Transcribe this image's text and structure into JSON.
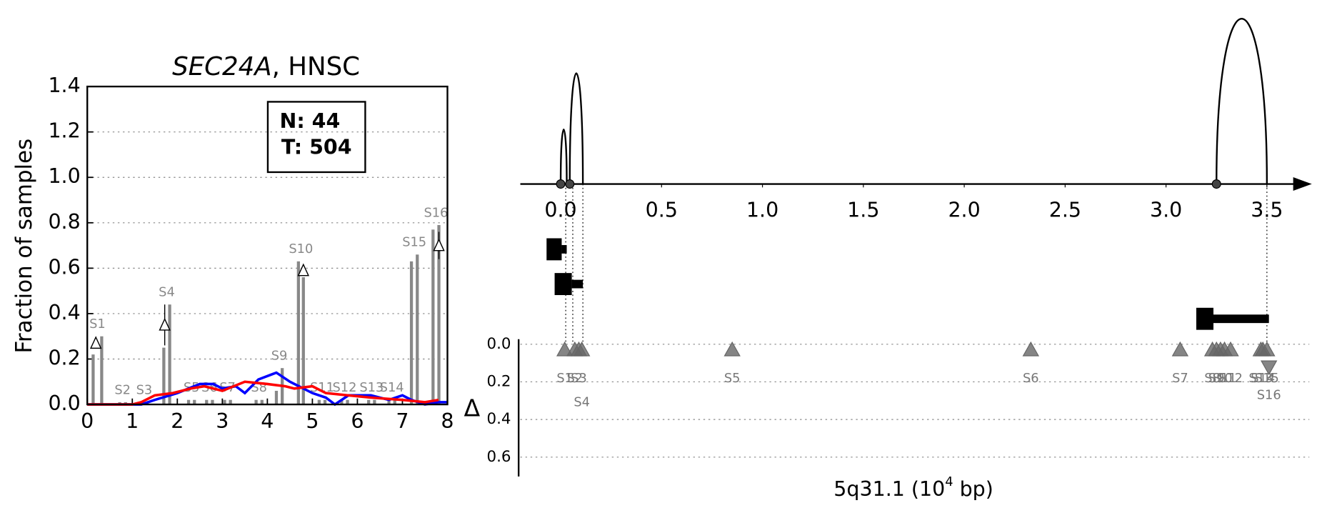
{
  "chart_data": [
    {
      "type": "segment-bar",
      "title": [
        "SEC24A",
        ", HNSC"
      ],
      "ylabel": "Fraction of samples",
      "xlim": [
        0,
        8
      ],
      "xticks": [
        0,
        1,
        2,
        3,
        4,
        5,
        6,
        7,
        8
      ],
      "ylim": [
        0,
        1.4
      ],
      "yticks": [
        {
          "value": 0,
          "label": "0.0"
        },
        {
          "value": 0.2,
          "label": "0.2"
        },
        {
          "value": 0.4,
          "label": "0.4"
        },
        {
          "value": 0.6,
          "label": "0.6"
        },
        {
          "value": 0.8,
          "label": "0.8"
        },
        {
          "value": 1.0,
          "label": "1.0"
        },
        {
          "value": 1.2,
          "label": "1.2"
        },
        {
          "value": 1.4,
          "label": "1.4"
        }
      ],
      "grid": true,
      "legend": [
        "N: 44",
        "T: 504"
      ],
      "bar_color": "#888888",
      "segments": [
        {
          "label": "S1",
          "x": [
            0.13,
            0.32
          ],
          "values": [
            0.22,
            0.3
          ],
          "marker": {
            "x": 0.19,
            "value": 0.27,
            "error": 0.02
          }
        },
        {
          "label": "S2",
          "x": [
            0.72,
            0.85
          ],
          "values": [
            0.01,
            0.01
          ]
        },
        {
          "label": "S3",
          "x": [
            1.2,
            1.33
          ],
          "values": [
            0.01,
            0.01
          ]
        },
        {
          "label": "S4",
          "x": [
            1.7,
            1.83
          ],
          "values": [
            0.25,
            0.44
          ],
          "marker": {
            "x": 1.72,
            "value": 0.35,
            "error": 0.09
          }
        },
        {
          "label": "S5",
          "x": [
            2.25,
            2.38
          ],
          "values": [
            0.02,
            0.02
          ]
        },
        {
          "label": "S6",
          "x": [
            2.65,
            2.78
          ],
          "values": [
            0.02,
            0.02
          ]
        },
        {
          "label": "S7",
          "x": [
            3.05,
            3.18
          ],
          "values": [
            0.02,
            0.02
          ]
        },
        {
          "label": "S8",
          "x": [
            3.75,
            3.88
          ],
          "values": [
            0.02,
            0.02
          ]
        },
        {
          "label": "S9",
          "x": [
            4.2,
            4.33
          ],
          "values": [
            0.06,
            0.16
          ]
        },
        {
          "label": "S10",
          "x": [
            4.69,
            4.8
          ],
          "values": [
            0.63,
            0.56
          ],
          "marker": {
            "x": 4.8,
            "value": 0.59,
            "error": 0.02
          }
        },
        {
          "label": "S11",
          "x": [
            5.15,
            5.28
          ],
          "values": [
            0.02,
            0.02
          ]
        },
        {
          "label": "S12",
          "x": [
            5.65,
            5.78
          ],
          "values": [
            0.02,
            0.02
          ]
        },
        {
          "label": "S13",
          "x": [
            6.25,
            6.38
          ],
          "values": [
            0.02,
            0.02
          ]
        },
        {
          "label": "S14",
          "x": [
            6.7,
            6.83
          ],
          "values": [
            0.02,
            0.02
          ]
        },
        {
          "label": "S15",
          "x": [
            7.2,
            7.33
          ],
          "values": [
            0.63,
            0.66
          ]
        },
        {
          "label": "S16",
          "x": [
            7.68,
            7.81
          ],
          "values": [
            0.77,
            0.79
          ],
          "marker": {
            "x": 7.81,
            "value": 0.7,
            "error": 0.06
          }
        }
      ],
      "lines": [
        {
          "color": "#0000ff",
          "x": [
            0,
            0.5,
            1,
            1.2,
            1.5,
            2,
            2.5,
            2.8,
            3,
            3.3,
            3.5,
            3.8,
            4.2,
            4.5,
            5,
            5.3,
            5.5,
            5.8,
            6.3,
            6.7,
            7,
            7.2,
            7.5,
            7.8,
            8
          ],
          "values": [
            0,
            0,
            0,
            0,
            0.02,
            0.05,
            0.09,
            0.09,
            0.07,
            0.08,
            0.05,
            0.11,
            0.14,
            0.1,
            0.05,
            0.03,
            0,
            0.04,
            0.04,
            0.02,
            0.04,
            0.02,
            0,
            0.01,
            0.01
          ]
        },
        {
          "color": "#ff0000",
          "x": [
            0,
            1,
            1.2,
            1.5,
            1.9,
            2.3,
            2.6,
            3,
            3.5,
            4,
            4.4,
            4.6,
            5,
            5.3,
            5.8,
            6.3,
            7,
            7.5,
            7.8
          ],
          "values": [
            0,
            0,
            0.01,
            0.04,
            0.05,
            0.07,
            0.08,
            0.06,
            0.1,
            0.09,
            0.08,
            0.07,
            0.08,
            0.05,
            0.04,
            0.03,
            0.02,
            0.01,
            0.02
          ]
        }
      ]
    },
    {
      "type": "genome-track",
      "xlabel": [
        "5q31.1 (10",
        "4",
        " bp)"
      ],
      "xlim": [
        -0.2,
        3.71
      ],
      "xticks": [
        {
          "value": 0,
          "label": "0.0"
        },
        {
          "value": 0.5,
          "label": "0.5"
        },
        {
          "value": 1.0,
          "label": "1.0"
        },
        {
          "value": 1.5,
          "label": "1.5"
        },
        {
          "value": 2.0,
          "label": "2.0"
        },
        {
          "value": 2.5,
          "label": "2.5"
        },
        {
          "value": 3.0,
          "label": "3.0"
        },
        {
          "value": 3.5,
          "label": "3.5"
        }
      ],
      "sites": [
        0.0,
        0.045,
        3.25
      ],
      "arcs": [
        {
          "start": 0.0,
          "end": 0.03,
          "height": 0.33
        },
        {
          "start": 0.045,
          "end": 0.11,
          "height": 0.67
        },
        {
          "start": 3.25,
          "end": 3.5,
          "height": 1.0
        }
      ],
      "transcripts": [
        {
          "box": [
            -0.07,
            0.005
          ],
          "line": [
            0.005,
            0.03
          ]
        },
        {
          "box": [
            -0.03,
            0.055
          ],
          "line": [
            0.055,
            0.11
          ]
        },
        {
          "box": [
            3.15,
            3.235
          ],
          "line": [
            3.235,
            3.51
          ]
        }
      ],
      "guides": [
        0.025,
        0.06,
        0.11,
        3.5
      ],
      "ylabel": "Δ",
      "ylim": [
        0,
        0.703
      ],
      "yticks": [
        {
          "value": 0,
          "label": "0.0"
        },
        {
          "value": 0.2,
          "label": "0.2"
        },
        {
          "value": 0.4,
          "label": "0.4"
        },
        {
          "value": 0.6,
          "label": "0.6"
        }
      ],
      "grid": true,
      "color": "#666666",
      "points": [
        {
          "label": "S1",
          "x": 0.02,
          "value": 0.03,
          "marker": "up"
        },
        {
          "label": "S2",
          "x": 0.07,
          "value": 0.03,
          "marker": "up"
        },
        {
          "label": "S3",
          "x": 0.09,
          "value": 0.03,
          "marker": "up"
        },
        {
          "label": "S4",
          "x": 0.105,
          "value": 0.03,
          "marker": "up"
        },
        {
          "label": "S5",
          "x": 0.85,
          "value": 0.03,
          "marker": "up"
        },
        {
          "label": "S6",
          "x": 2.33,
          "value": 0.03,
          "marker": "up"
        },
        {
          "label": "S7",
          "x": 3.07,
          "value": 0.03,
          "marker": "up"
        },
        {
          "label": "S8",
          "x": 3.23,
          "value": 0.03,
          "marker": "up"
        },
        {
          "label": "S9",
          "x": 3.25,
          "value": 0.03,
          "marker": "up"
        },
        {
          "label": "S10",
          "x": 3.27,
          "value": 0.03,
          "marker": "up"
        },
        {
          "label": "S11",
          "x": 3.29,
          "value": 0.03,
          "marker": "up"
        },
        {
          "label": "S12",
          "x": 3.32,
          "value": 0.03,
          "marker": "up"
        },
        {
          "label": "S13",
          "x": 3.47,
          "value": 0.03,
          "marker": "up"
        },
        {
          "label": "S14",
          "x": 3.48,
          "value": 0.03,
          "marker": "up"
        },
        {
          "label": "S15",
          "x": 3.5,
          "value": 0.03,
          "marker": "up"
        },
        {
          "label": "S16",
          "x": 3.51,
          "value": 0.12,
          "marker": "down"
        }
      ]
    }
  ]
}
